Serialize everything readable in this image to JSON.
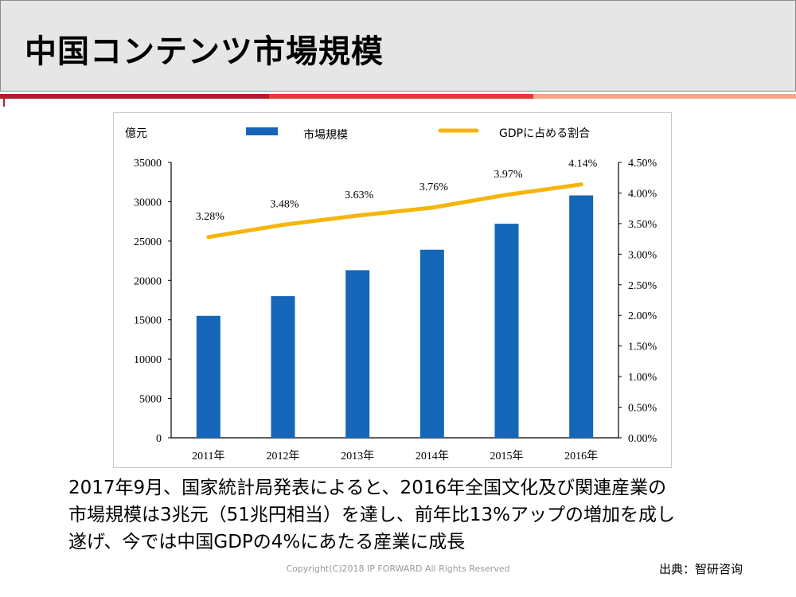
{
  "slide": {
    "title": "中国コンテンツ市場規模",
    "accent_colors": [
      "#b01c2e",
      "#e53935",
      "#f4a58a"
    ],
    "body_lines": [
      "2017年9月、国家統計局発表によると、2016年全国文化及び関連産業の",
      "市場規模は3兆元（51兆円相当）を達し、前年比13%アップの増加を成し",
      "遂げ、今では中国GDPの4%にあたる産業に成長"
    ],
    "copyright": "Copyright(C)2018 IP FORWARD All Rights Reserved",
    "source": "出典：智研咨询"
  },
  "chart_data": {
    "type": "bar",
    "categories": [
      "2011年",
      "2012年",
      "2013年",
      "2014年",
      "2015年",
      "2016年"
    ],
    "unit_label": "億元",
    "series": [
      {
        "name": "市場規模",
        "type": "bar",
        "axis": "left",
        "color": "#1565b8",
        "values": [
          15500,
          18000,
          21300,
          23900,
          27200,
          30800
        ]
      },
      {
        "name": "GDPに占める割合",
        "type": "line",
        "axis": "right",
        "color": "#f5b50a",
        "values": [
          3.28,
          3.48,
          3.63,
          3.76,
          3.97,
          4.14
        ],
        "labels": [
          "3.28%",
          "3.48%",
          "3.63%",
          "3.76%",
          "3.97%",
          "4.14%"
        ]
      }
    ],
    "ylim_left": [
      0,
      35000
    ],
    "yticks_left": [
      "0",
      "5000",
      "10000",
      "15000",
      "20000",
      "25000",
      "30000",
      "35000"
    ],
    "ylim_right": [
      0,
      4.5
    ],
    "yticks_right": [
      "0.00%",
      "0.50%",
      "1.00%",
      "1.50%",
      "2.00%",
      "2.50%",
      "3.00%",
      "3.50%",
      "4.00%",
      "4.50%"
    ],
    "legend_position": "top",
    "grid": false
  }
}
